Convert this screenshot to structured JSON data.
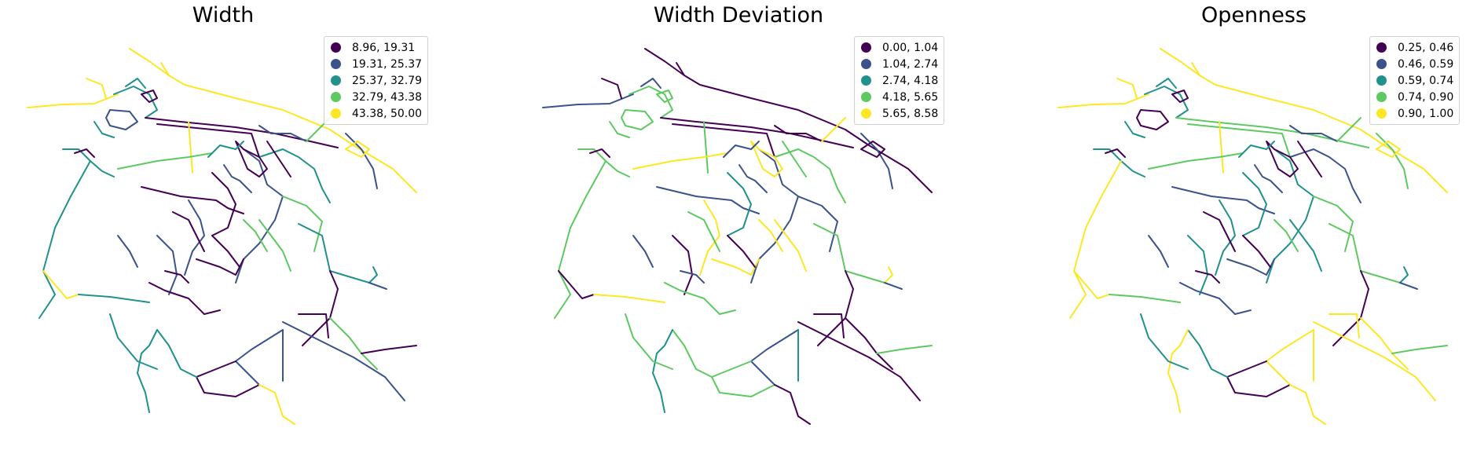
{
  "palette": {
    "c0": "#440154",
    "c1": "#3b528b",
    "c2": "#21918c",
    "c3": "#5ec962",
    "c4": "#fde725"
  },
  "panels": [
    {
      "title": "Width",
      "legend": [
        "8.96, 19.31",
        "19.31, 25.37",
        "25.37, 32.79",
        "32.79, 43.38",
        "43.38, 50.00"
      ]
    },
    {
      "title": "Width Deviation",
      "legend": [
        "0.00, 1.04",
        "1.04, 2.74",
        "2.74, 4.18",
        "4.18, 5.65",
        "5.65, 8.58"
      ]
    },
    {
      "title": "Openness",
      "legend": [
        "0.25, 0.46",
        "0.46, 0.59",
        "0.59, 0.74",
        "0.74, 0.90",
        "0.90, 1.00"
      ]
    }
  ]
}
